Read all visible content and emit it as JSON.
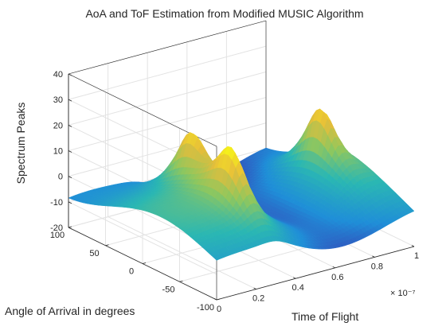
{
  "chart_data": {
    "type": "surface",
    "title": "AoA and ToF Estimation from Modified MUSIC Algorithm",
    "xlabel": "Time of Flight",
    "ylabel": "Angle of Arrival in degrees",
    "zlabel": "Spectrum Peaks",
    "x_exponent": "× 10⁻⁷",
    "xlim": [
      0,
      1
    ],
    "ylim": [
      -100,
      100
    ],
    "zlim": [
      -20,
      40
    ],
    "x_ticks": [
      "0",
      "0.2",
      "0.4",
      "0.6",
      "0.8",
      "1"
    ],
    "y_ticks": [
      "100",
      "50",
      "0",
      "-50",
      "-100"
    ],
    "z_ticks": [
      "40",
      "30",
      "20",
      "10",
      "0",
      "-10",
      "-20"
    ],
    "grid": true,
    "colormap": "parula",
    "colors": [
      "#3e26a8",
      "#1f8ed8",
      "#2ab7b3",
      "#8fc75e",
      "#e7bd3a",
      "#f9fb15"
    ],
    "peaks": [
      {
        "tof": 0.3,
        "aoa": -40,
        "value": 22
      },
      {
        "tof": 0.34,
        "aoa": 25,
        "value": 22
      },
      {
        "tof": 0.92,
        "aoa": 5,
        "value": 23
      }
    ]
  }
}
